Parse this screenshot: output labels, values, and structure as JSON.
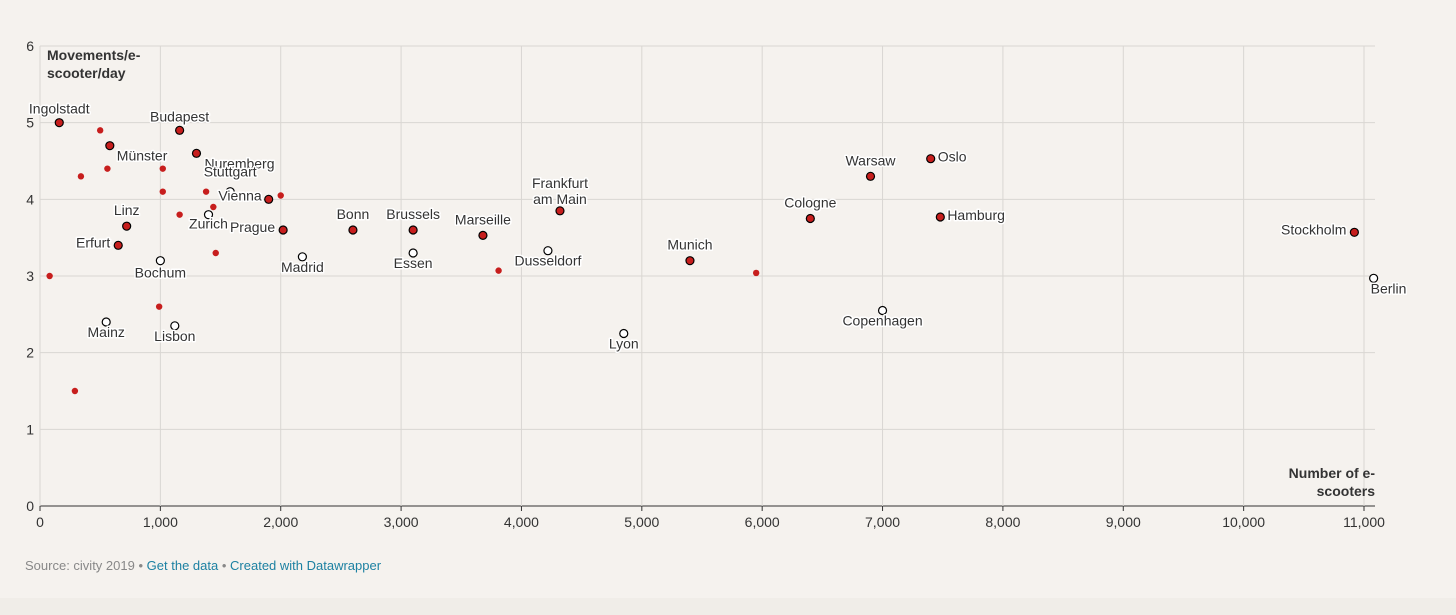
{
  "chart_data": {
    "type": "scatter",
    "xlabel": "Number of e-scooters",
    "ylabel": "Movements/e-scooter/day",
    "xlim": [
      0,
      11000
    ],
    "ylim": [
      0,
      6
    ],
    "x_ticks": [
      "0",
      "1,000",
      "2,000",
      "3,000",
      "4,000",
      "5,000",
      "6,000",
      "7,000",
      "8,000",
      "9,000",
      "10,000",
      "11,000"
    ],
    "y_ticks": [
      "0",
      "1",
      "2",
      "3",
      "4",
      "5",
      "6"
    ],
    "grid": true,
    "colors": {
      "filled": "#c71e1d",
      "stroke": "#000000",
      "grid": "#d9d6d2",
      "axis": "#333333"
    },
    "labeled_points": [
      {
        "name": "Ingolstadt",
        "x": 160,
        "y": 5.0,
        "style": "filled"
      },
      {
        "name": "Budapest",
        "x": 1160,
        "y": 4.9,
        "style": "filled"
      },
      {
        "name": "Münster",
        "x": 580,
        "y": 4.7,
        "style": "filled"
      },
      {
        "name": "Nuremberg",
        "x": 1300,
        "y": 4.6,
        "style": "filled"
      },
      {
        "name": "Stuttgart",
        "x": 1580,
        "y": 4.1,
        "style": "hollow"
      },
      {
        "name": "Vienna",
        "x": 1900,
        "y": 4.0,
        "style": "filled"
      },
      {
        "name": "Zurich",
        "x": 1400,
        "y": 3.8,
        "style": "hollow"
      },
      {
        "name": "Linz",
        "x": 720,
        "y": 3.65,
        "style": "filled"
      },
      {
        "name": "Prague",
        "x": 2020,
        "y": 3.6,
        "style": "filled"
      },
      {
        "name": "Bonn",
        "x": 2600,
        "y": 3.6,
        "style": "filled"
      },
      {
        "name": "Brussels",
        "x": 3100,
        "y": 3.6,
        "style": "filled"
      },
      {
        "name": "Marseille",
        "x": 3680,
        "y": 3.53,
        "style": "filled"
      },
      {
        "name": "Frankfurt am Main",
        "x": 4320,
        "y": 3.85,
        "style": "filled"
      },
      {
        "name": "Erfurt",
        "x": 650,
        "y": 3.4,
        "style": "filled"
      },
      {
        "name": "Madrid",
        "x": 2180,
        "y": 3.25,
        "style": "hollow"
      },
      {
        "name": "Essen",
        "x": 3100,
        "y": 3.3,
        "style": "hollow"
      },
      {
        "name": "Dusseldorf",
        "x": 4220,
        "y": 3.33,
        "style": "hollow"
      },
      {
        "name": "Bochum",
        "x": 1000,
        "y": 3.2,
        "style": "hollow"
      },
      {
        "name": "Munich",
        "x": 5400,
        "y": 3.2,
        "style": "filled"
      },
      {
        "name": "Cologne",
        "x": 6400,
        "y": 3.75,
        "style": "filled"
      },
      {
        "name": "Warsaw",
        "x": 6900,
        "y": 4.3,
        "style": "filled"
      },
      {
        "name": "Oslo",
        "x": 7400,
        "y": 4.53,
        "style": "filled"
      },
      {
        "name": "Hamburg",
        "x": 7480,
        "y": 3.77,
        "style": "filled"
      },
      {
        "name": "Stockholm",
        "x": 10920,
        "y": 3.57,
        "style": "filled"
      },
      {
        "name": "Berlin",
        "x": 11080,
        "y": 2.97,
        "style": "hollow"
      },
      {
        "name": "Copenhagen",
        "x": 7000,
        "y": 2.55,
        "style": "hollow"
      },
      {
        "name": "Lyon",
        "x": 4850,
        "y": 2.25,
        "style": "hollow"
      },
      {
        "name": "Mainz",
        "x": 550,
        "y": 2.4,
        "style": "hollow"
      },
      {
        "name": "Lisbon",
        "x": 1120,
        "y": 2.35,
        "style": "hollow"
      }
    ],
    "unlabeled_points": [
      {
        "x": 500,
        "y": 4.9
      },
      {
        "x": 340,
        "y": 4.3
      },
      {
        "x": 560,
        "y": 4.4
      },
      {
        "x": 1020,
        "y": 4.4
      },
      {
        "x": 1020,
        "y": 4.1
      },
      {
        "x": 1380,
        "y": 4.1
      },
      {
        "x": 2000,
        "y": 4.05
      },
      {
        "x": 1440,
        "y": 3.9
      },
      {
        "x": 1160,
        "y": 3.8
      },
      {
        "x": 1460,
        "y": 3.3
      },
      {
        "x": 80,
        "y": 3.0
      },
      {
        "x": 3810,
        "y": 3.07
      },
      {
        "x": 5950,
        "y": 3.04
      },
      {
        "x": 990,
        "y": 2.6
      },
      {
        "x": 290,
        "y": 1.5
      }
    ]
  },
  "footer": {
    "source": "Source: civity 2019",
    "separator": "•",
    "get_data": "Get the data",
    "created_with": "Created with Datawrapper"
  }
}
